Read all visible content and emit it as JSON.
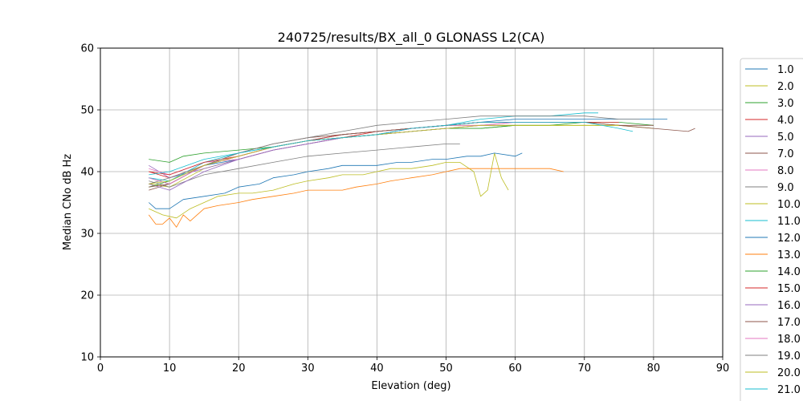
{
  "chart_data": {
    "type": "line",
    "title": "240725/results/BX_all_0 GLONASS L2(CA)",
    "xlabel": "Elevation (deg)",
    "ylabel": "Median CNo dB Hz",
    "xlim": [
      0,
      90
    ],
    "ylim": [
      10,
      60
    ],
    "xticks": [
      "0",
      "10",
      "20",
      "30",
      "40",
      "50",
      "60",
      "70",
      "80",
      "90"
    ],
    "yticks": [
      "10",
      "20",
      "30",
      "40",
      "50",
      "60"
    ],
    "grid": true,
    "legend_position": "right, outside plot",
    "series": [
      {
        "name": "1.0",
        "color": "#1f77b4",
        "x": [
          7,
          10,
          15,
          20,
          25,
          30,
          35,
          40,
          45,
          50,
          55,
          60,
          65,
          70,
          75,
          80,
          82
        ],
        "values": [
          39,
          38,
          41,
          42,
          43.5,
          44.5,
          45.5,
          46,
          47,
          47.5,
          48,
          48.5,
          48.5,
          48.5,
          48.5,
          48.5,
          48.5
        ]
      },
      {
        "name": "2.0",
        "color": "#bcbd22",
        "x": [
          7,
          10,
          15,
          20,
          25,
          30,
          35,
          40,
          45,
          50,
          55,
          60,
          65,
          70,
          75,
          80
        ],
        "values": [
          38,
          37.5,
          40.5,
          42,
          43.5,
          44.5,
          45.5,
          46,
          47,
          47.5,
          47.5,
          47.5,
          47.5,
          47.5,
          47.5,
          47
        ]
      },
      {
        "name": "3.0",
        "color": "#2ca02c",
        "x": [
          7,
          10,
          15,
          20,
          25,
          30,
          35,
          40,
          45,
          50,
          55,
          60,
          65,
          70,
          75,
          80
        ],
        "values": [
          37.5,
          38.5,
          41,
          42.5,
          44,
          45,
          45.5,
          46,
          46.5,
          47,
          47,
          47.5,
          47.5,
          48,
          48,
          47.5
        ]
      },
      {
        "name": "4.0",
        "color": "#d62728",
        "x": [
          7,
          10,
          15,
          20,
          25,
          30,
          35,
          40,
          45,
          50,
          55,
          60,
          65,
          70,
          75
        ],
        "values": [
          40,
          39,
          41,
          42.5,
          44,
          45,
          45.5,
          46.5,
          47,
          47.5,
          48,
          48,
          48,
          48,
          48
        ]
      },
      {
        "name": "5.0",
        "color": "#9467bd",
        "x": [
          7,
          10,
          15,
          20,
          25,
          30,
          35,
          40,
          45,
          50,
          55,
          60
        ],
        "values": [
          41,
          39,
          40.5,
          42,
          43.5,
          44.5,
          45.5,
          46,
          46.5,
          47,
          47.5,
          47.5
        ]
      },
      {
        "name": "7.0",
        "color": "#8c564b",
        "x": [
          7,
          10,
          15,
          20,
          25,
          30,
          35,
          40,
          45,
          50,
          55,
          60,
          65,
          70,
          75,
          80,
          85,
          86
        ],
        "values": [
          37,
          38,
          41,
          42.5,
          44,
          45,
          46,
          46.5,
          47,
          47.5,
          48,
          48,
          48,
          48,
          47.5,
          47,
          46.5,
          47
        ]
      },
      {
        "name": "8.0",
        "color": "#e377c2",
        "x": [
          7,
          10,
          15,
          20,
          25,
          30,
          35,
          40,
          45,
          50,
          55,
          60
        ],
        "values": [
          40.5,
          39.5,
          41.5,
          42,
          43.5,
          44.5,
          45.5,
          46,
          47,
          47.5,
          47.5,
          48
        ]
      },
      {
        "name": "9.0",
        "color": "#7f7f7f",
        "x": [
          7,
          10,
          15,
          20,
          25,
          30,
          35,
          40,
          45,
          50,
          52
        ],
        "values": [
          38.5,
          37.5,
          39.5,
          40.5,
          41.5,
          42.5,
          43,
          43.5,
          44,
          44.5,
          44.5
        ]
      },
      {
        "name": "10.0",
        "color": "#bcbd22",
        "x": [
          7,
          9,
          11,
          13,
          15,
          17,
          20,
          22,
          25,
          28,
          30,
          33,
          35,
          38,
          40,
          42,
          45,
          48,
          50,
          52,
          54,
          55,
          56,
          57,
          58,
          59
        ],
        "values": [
          34,
          33,
          32.5,
          34,
          35,
          36,
          36.5,
          36.5,
          37,
          38,
          38.5,
          39,
          39.5,
          39.5,
          40,
          40.5,
          40.5,
          41,
          41.5,
          41.5,
          40,
          36,
          37,
          43,
          39,
          37
        ]
      },
      {
        "name": "11.0",
        "color": "#17becf",
        "x": [
          7,
          10,
          15,
          20,
          25,
          30,
          35,
          40,
          45,
          50,
          55,
          60,
          65,
          70,
          72
        ],
        "values": [
          39,
          38.5,
          41.5,
          43,
          44,
          45,
          46,
          46.5,
          47,
          47.5,
          48.5,
          49,
          49,
          49.5,
          49.5
        ]
      },
      {
        "name": "12.0",
        "color": "#1f77b4",
        "x": [
          7,
          8,
          10,
          12,
          15,
          18,
          20,
          23,
          25,
          28,
          30,
          33,
          35,
          38,
          40,
          43,
          45,
          48,
          50,
          53,
          55,
          57,
          60,
          61
        ],
        "values": [
          35,
          34,
          34,
          35.5,
          36,
          36.5,
          37.5,
          38,
          39,
          39.5,
          40,
          40.5,
          41,
          41,
          41,
          41.5,
          41.5,
          42,
          42,
          42.5,
          42.5,
          43,
          42.5,
          43
        ]
      },
      {
        "name": "13.0",
        "color": "#ff7f0e",
        "x": [
          7,
          8,
          9,
          10,
          11,
          12,
          13,
          15,
          17,
          20,
          22,
          25,
          28,
          30,
          32,
          35,
          37,
          40,
          42,
          45,
          48,
          50,
          52,
          55,
          58,
          60,
          63,
          65,
          67
        ],
        "values": [
          33,
          31.5,
          31.5,
          32.5,
          31,
          33,
          32,
          34,
          34.5,
          35,
          35.5,
          36,
          36.5,
          37,
          37,
          37,
          37.5,
          38,
          38.5,
          39,
          39.5,
          40,
          40.5,
          40.5,
          40.5,
          40.5,
          40.5,
          40.5,
          40
        ]
      },
      {
        "name": "14.0",
        "color": "#2ca02c",
        "x": [
          7,
          10,
          12,
          15,
          20,
          25,
          30,
          35,
          40,
          45,
          50,
          55,
          60
        ],
        "values": [
          42,
          41.5,
          42.5,
          43,
          43.5,
          44,
          45,
          45.5,
          46,
          46.5,
          47,
          47,
          47.5
        ]
      },
      {
        "name": "15.0",
        "color": "#d62728",
        "x": [
          7,
          10,
          15,
          20,
          25,
          30,
          35,
          40,
          45,
          50,
          55,
          60,
          65
        ],
        "values": [
          40,
          39.5,
          41.5,
          42.5,
          44,
          45,
          46,
          46.5,
          47,
          47.5,
          48,
          48,
          48
        ]
      },
      {
        "name": "16.0",
        "color": "#9467bd",
        "x": [
          7,
          10,
          15,
          20,
          25,
          30,
          35,
          40,
          45,
          50,
          55,
          60,
          65,
          70
        ],
        "values": [
          38,
          37,
          40,
          42,
          43.5,
          44.5,
          45.5,
          46,
          47,
          47.5,
          48,
          48,
          48,
          48
        ]
      },
      {
        "name": "17.0",
        "color": "#8c564b",
        "x": [
          7,
          10,
          15,
          20,
          25,
          30,
          35,
          40,
          45,
          50,
          55,
          60,
          65,
          70,
          75,
          80
        ],
        "values": [
          37.5,
          38,
          41,
          43,
          44.5,
          45.5,
          46,
          46.5,
          47,
          47.5,
          48,
          48,
          48,
          48,
          47.5,
          47.5
        ]
      },
      {
        "name": "18.0",
        "color": "#e377c2",
        "x": [
          7,
          10,
          15,
          20,
          25,
          30,
          35,
          40,
          45,
          50,
          55,
          60,
          65
        ],
        "values": [
          39,
          38,
          41,
          42.5,
          44,
          45,
          45.5,
          46,
          46.5,
          47,
          47.5,
          48,
          48
        ]
      },
      {
        "name": "19.0",
        "color": "#7f7f7f",
        "x": [
          7,
          10,
          15,
          20,
          25,
          30,
          35,
          40,
          45,
          50,
          55,
          60,
          65,
          70,
          75,
          78
        ],
        "values": [
          38,
          39,
          41,
          43,
          44.5,
          45.5,
          46.5,
          47.5,
          48,
          48.5,
          49,
          49,
          49,
          49,
          48.5,
          48.5
        ]
      },
      {
        "name": "20.0",
        "color": "#bcbd22",
        "x": [
          7,
          10,
          15,
          20,
          25,
          30,
          35,
          40,
          45,
          50,
          55,
          60,
          65,
          70,
          75
        ],
        "values": [
          38,
          38.5,
          41,
          42.5,
          44,
          45,
          45.5,
          46,
          46.5,
          47,
          47.5,
          47.5,
          47.5,
          47.5,
          47.5
        ]
      },
      {
        "name": "21.0",
        "color": "#17becf",
        "x": [
          7,
          10,
          15,
          20,
          25,
          30,
          35,
          40,
          45,
          50,
          55,
          60,
          65,
          70,
          75,
          77
        ],
        "values": [
          39.5,
          40,
          42,
          43,
          44,
          45,
          45.5,
          46,
          47,
          47.5,
          48,
          48,
          48,
          48,
          47,
          46.5
        ]
      }
    ]
  }
}
